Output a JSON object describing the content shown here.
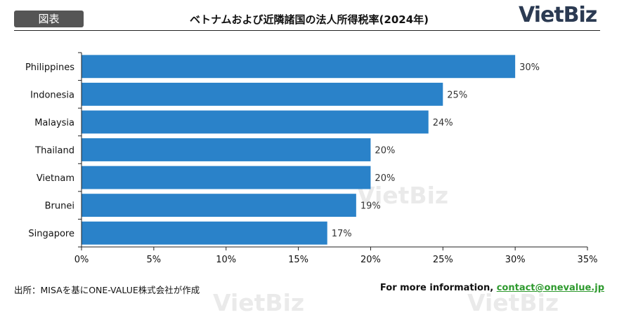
{
  "header": {
    "tag_label": "図表",
    "title": "ベトナムおよび近隣諸国の法人所得税率(2024年)",
    "logo": "VietBiz"
  },
  "chart_data": {
    "type": "bar",
    "orientation": "horizontal",
    "categories": [
      "Philippines",
      "Indonesia",
      "Malaysia",
      "Thailand",
      "Vietnam",
      "Brunei",
      "Singapore"
    ],
    "values": [
      30,
      25,
      24,
      20,
      20,
      19,
      17
    ],
    "value_labels": [
      "30%",
      "25%",
      "24%",
      "20%",
      "20%",
      "19%",
      "17%"
    ],
    "x_ticks": [
      "0%",
      "5%",
      "10%",
      "15%",
      "20%",
      "25%",
      "30%",
      "35%"
    ],
    "xlim": [
      0,
      35
    ],
    "bar_color": "#2a82c9",
    "grid": false,
    "watermark": "VietBiz"
  },
  "footer": {
    "source": "出所：MISAを基にONE-VALUE株式会社が作成",
    "contact_prefix": "For more information, ",
    "contact_email": "contact@onevalue.jp"
  }
}
